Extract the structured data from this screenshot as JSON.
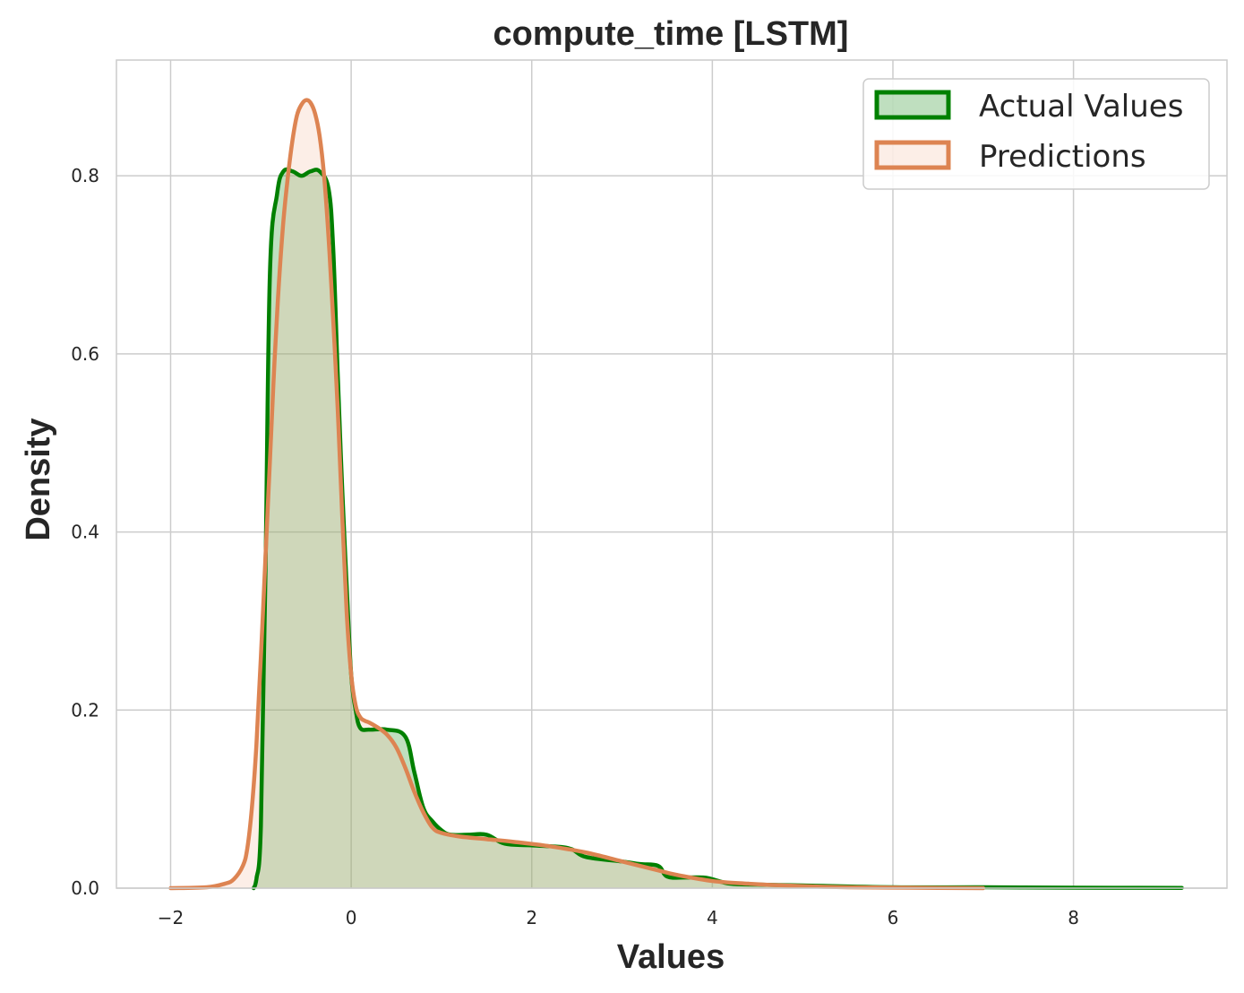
{
  "chart_data": {
    "type": "area",
    "title": "compute_time [LSTM]",
    "xlabel": "Values",
    "ylabel": "Density",
    "xlim": [
      -2.6,
      9.7
    ],
    "ylim": [
      0,
      0.93
    ],
    "xticks": [
      -2,
      0,
      2,
      4,
      6,
      8
    ],
    "yticks": [
      0.0,
      0.2,
      0.4,
      0.6,
      0.8
    ],
    "xtick_labels": [
      "−2",
      "0",
      "2",
      "4",
      "6",
      "8"
    ],
    "ytick_labels": [
      "0.0",
      "0.2",
      "0.4",
      "0.6",
      "0.8"
    ],
    "grid": true,
    "legend_position": "top-right",
    "series": [
      {
        "name": "Actual Values",
        "color": "#008000",
        "fill_color": "#008000",
        "x": [
          -1.08,
          -1.05,
          -1.0,
          -0.95,
          -0.9,
          -0.82,
          -0.75,
          -0.65,
          -0.55,
          -0.45,
          -0.35,
          -0.25,
          -0.2,
          -0.15,
          -0.1,
          -0.05,
          0.0,
          0.05,
          0.1,
          0.2,
          0.4,
          0.6,
          0.7,
          0.8,
          0.9,
          1.0,
          1.1,
          1.3,
          1.5,
          1.7,
          2.0,
          2.4,
          2.6,
          3.0,
          3.2,
          3.4,
          3.5,
          3.7,
          3.9,
          4.0,
          4.2,
          4.5,
          5.0,
          6.0,
          7.0,
          8.0,
          9.2
        ],
        "y": [
          0.0,
          0.01,
          0.07,
          0.35,
          0.69,
          0.78,
          0.805,
          0.805,
          0.8,
          0.805,
          0.805,
          0.785,
          0.72,
          0.58,
          0.45,
          0.34,
          0.24,
          0.2,
          0.18,
          0.178,
          0.178,
          0.17,
          0.13,
          0.09,
          0.075,
          0.065,
          0.06,
          0.06,
          0.06,
          0.05,
          0.048,
          0.045,
          0.035,
          0.03,
          0.027,
          0.025,
          0.013,
          0.012,
          0.012,
          0.01,
          0.005,
          0.004,
          0.003,
          0.001,
          0.001,
          0.0005,
          0.0003
        ]
      },
      {
        "name": "Predictions",
        "color": "#dd8452",
        "fill_color": "#f4c7ae",
        "x": [
          -2.0,
          -1.6,
          -1.4,
          -1.3,
          -1.2,
          -1.15,
          -1.1,
          -1.05,
          -1.0,
          -0.95,
          -0.9,
          -0.85,
          -0.8,
          -0.75,
          -0.7,
          -0.65,
          -0.6,
          -0.55,
          -0.5,
          -0.45,
          -0.4,
          -0.35,
          -0.3,
          -0.25,
          -0.2,
          -0.15,
          -0.1,
          -0.05,
          0.0,
          0.05,
          0.1,
          0.15,
          0.2,
          0.3,
          0.4,
          0.5,
          0.6,
          0.7,
          0.8,
          0.9,
          1.0,
          1.2,
          1.5,
          1.8,
          2.2,
          2.6,
          3.0,
          3.4,
          3.6,
          4.0,
          4.4,
          4.8,
          5.5,
          6.5,
          7.0
        ],
        "y": [
          0.0,
          0.001,
          0.005,
          0.01,
          0.025,
          0.045,
          0.09,
          0.16,
          0.26,
          0.37,
          0.48,
          0.59,
          0.68,
          0.75,
          0.8,
          0.84,
          0.868,
          0.88,
          0.885,
          0.882,
          0.87,
          0.845,
          0.8,
          0.73,
          0.64,
          0.54,
          0.42,
          0.31,
          0.24,
          0.205,
          0.192,
          0.188,
          0.186,
          0.18,
          0.172,
          0.158,
          0.135,
          0.108,
          0.085,
          0.068,
          0.062,
          0.058,
          0.055,
          0.052,
          0.047,
          0.04,
          0.03,
          0.02,
          0.015,
          0.008,
          0.005,
          0.003,
          0.001,
          0.0003,
          0.0
        ]
      }
    ]
  }
}
